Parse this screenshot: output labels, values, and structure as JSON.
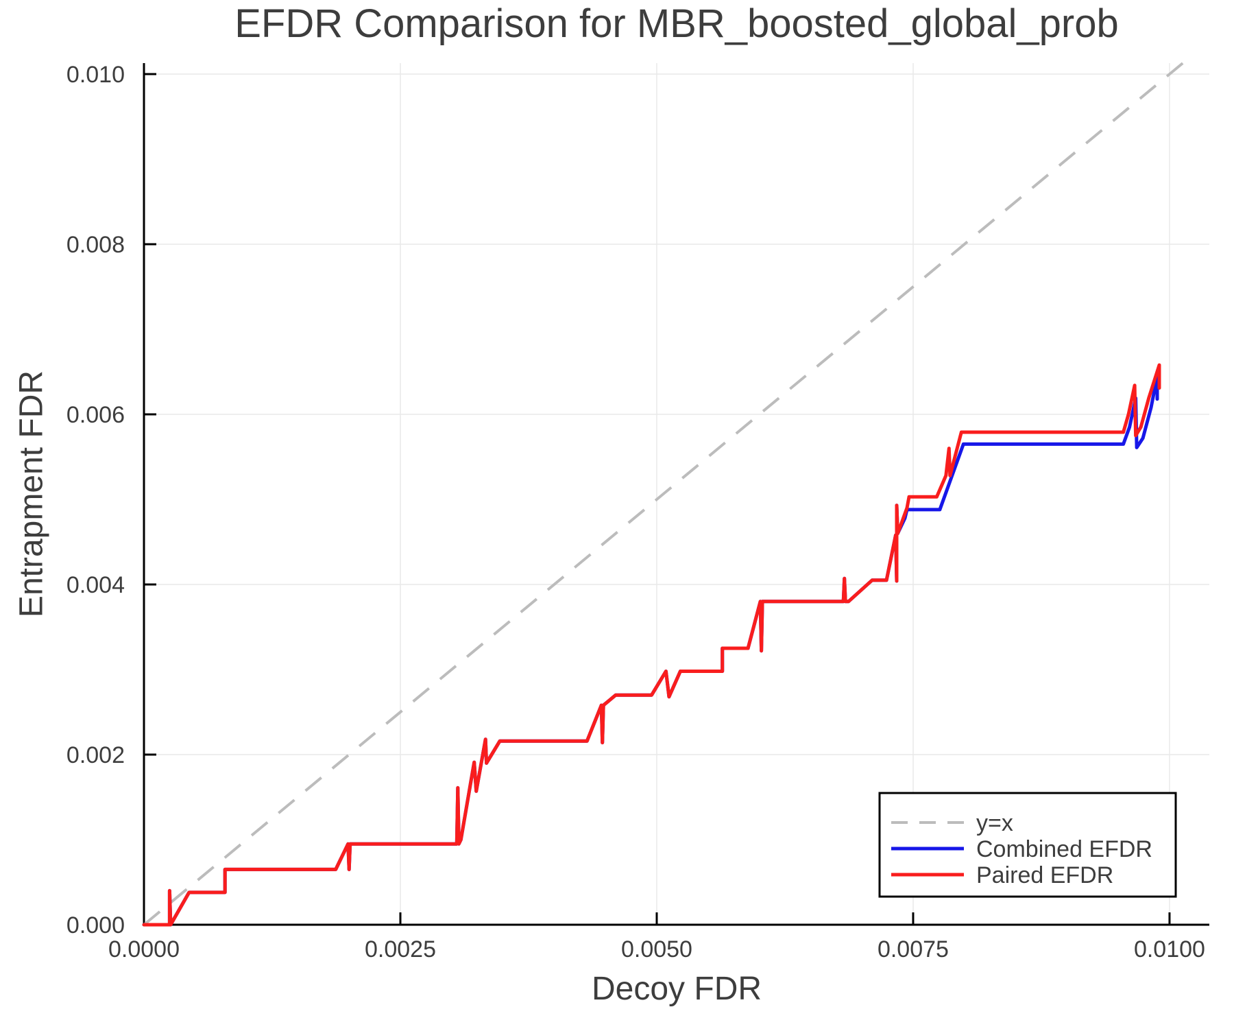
{
  "chart_data": {
    "type": "line",
    "title": "EFDR Comparison for MBR_boosted_global_prob",
    "xlabel": "Decoy FDR",
    "ylabel": "Entrapment FDR",
    "xlim": [
      0,
      0.010388
    ],
    "ylim": [
      0,
      0.010129
    ],
    "grid": true,
    "legend_position": "bottom-right",
    "x_ticks": {
      "values": [
        0,
        0.0025,
        0.005,
        0.0075,
        0.01
      ],
      "labels": [
        "0.0000",
        "0.0025",
        "0.0050",
        "0.0075",
        "0.0100"
      ]
    },
    "y_ticks": {
      "values": [
        0,
        0.002,
        0.004,
        0.006,
        0.008,
        0.01
      ],
      "labels": [
        "0.000",
        "0.002",
        "0.004",
        "0.006",
        "0.008",
        "0.010"
      ]
    },
    "colors": {
      "identity": "#bcbcbc",
      "combined": "#1717e8",
      "paired": "#f91d1d",
      "grid": "#e9e9e9",
      "axis": "#000000",
      "text": "#3d3d3d"
    },
    "series": [
      {
        "name": "y=x",
        "legend_label": "y=x",
        "color": "#bcbcbc",
        "style": "dashed",
        "points": [
          [
            0,
            0
          ],
          [
            0.010129,
            0.010129
          ]
        ]
      },
      {
        "name": "Combined EFDR",
        "legend_label": "Combined EFDR",
        "color": "#1717e8",
        "style": "solid",
        "points": [
          [
            0,
            0
          ],
          [
            0.00025,
            0
          ],
          [
            0.00025,
            0.0004
          ],
          [
            0.00026,
            0
          ],
          [
            0.00044,
            0.00038
          ],
          [
            0.00079,
            0.00038
          ],
          [
            0.00079,
            0.00065
          ],
          [
            0.00187,
            0.00065
          ],
          [
            0.00199,
            0.00095
          ],
          [
            0.002,
            0.00065
          ],
          [
            0.00201,
            0.00095
          ],
          [
            0.00305,
            0.00095
          ],
          [
            0.00306,
            0.00161
          ],
          [
            0.00307,
            0.00095
          ],
          [
            0.00309,
            0.001
          ],
          [
            0.00322,
            0.00191
          ],
          [
            0.00324,
            0.00157
          ],
          [
            0.00333,
            0.00218
          ],
          [
            0.00334,
            0.0019
          ],
          [
            0.00347,
            0.00216
          ],
          [
            0.00432,
            0.00216
          ],
          [
            0.00446,
            0.00258
          ],
          [
            0.00447,
            0.00214
          ],
          [
            0.00448,
            0.00258
          ],
          [
            0.0046,
            0.0027
          ],
          [
            0.00495,
            0.0027
          ],
          [
            0.00509,
            0.00298
          ],
          [
            0.00512,
            0.00268
          ],
          [
            0.00523,
            0.00298
          ],
          [
            0.00564,
            0.00298
          ],
          [
            0.00564,
            0.00325
          ],
          [
            0.00589,
            0.00325
          ],
          [
            0.00601,
            0.0038
          ],
          [
            0.00602,
            0.00322
          ],
          [
            0.00603,
            0.0038
          ],
          [
            0.00682,
            0.0038
          ],
          [
            0.00683,
            0.00407
          ],
          [
            0.00684,
            0.0038
          ],
          [
            0.00687,
            0.0038
          ],
          [
            0.0071,
            0.00405
          ],
          [
            0.00724,
            0.00405
          ],
          [
            0.00733,
            0.00458
          ],
          [
            0.00734,
            0.00404
          ],
          [
            0.00734,
            0.00493
          ],
          [
            0.00735,
            0.0046
          ],
          [
            0.00742,
            0.00478
          ],
          [
            0.00744,
            0.00488
          ],
          [
            0.00776,
            0.00488
          ],
          [
            0.00799,
            0.00565
          ],
          [
            0.00955,
            0.00565
          ],
          [
            0.00961,
            0.00585
          ],
          [
            0.00967,
            0.00619
          ],
          [
            0.00968,
            0.00561
          ],
          [
            0.00974,
            0.00572
          ],
          [
            0.00982,
            0.00608
          ],
          [
            0.00988,
            0.00645
          ],
          [
            0.00988,
            0.00618
          ]
        ]
      },
      {
        "name": "Paired EFDR",
        "legend_label": "Paired EFDR",
        "color": "#f91d1d",
        "style": "solid",
        "points": [
          [
            0,
            0
          ],
          [
            0.00025,
            0
          ],
          [
            0.00025,
            0.0004
          ],
          [
            0.00026,
            0
          ],
          [
            0.00044,
            0.00038
          ],
          [
            0.00079,
            0.00038
          ],
          [
            0.00079,
            0.00065
          ],
          [
            0.00187,
            0.00065
          ],
          [
            0.00199,
            0.00095
          ],
          [
            0.002,
            0.00065
          ],
          [
            0.00201,
            0.00095
          ],
          [
            0.00305,
            0.00095
          ],
          [
            0.00306,
            0.00161
          ],
          [
            0.00307,
            0.00095
          ],
          [
            0.00309,
            0.001
          ],
          [
            0.00322,
            0.00191
          ],
          [
            0.00324,
            0.00157
          ],
          [
            0.00333,
            0.00218
          ],
          [
            0.00334,
            0.0019
          ],
          [
            0.00347,
            0.00216
          ],
          [
            0.00432,
            0.00216
          ],
          [
            0.00446,
            0.00258
          ],
          [
            0.00447,
            0.00214
          ],
          [
            0.00448,
            0.00258
          ],
          [
            0.0046,
            0.0027
          ],
          [
            0.00495,
            0.0027
          ],
          [
            0.00509,
            0.00298
          ],
          [
            0.00512,
            0.00268
          ],
          [
            0.00523,
            0.00298
          ],
          [
            0.00564,
            0.00298
          ],
          [
            0.00564,
            0.00325
          ],
          [
            0.00589,
            0.00325
          ],
          [
            0.00601,
            0.0038
          ],
          [
            0.00602,
            0.00322
          ],
          [
            0.00603,
            0.0038
          ],
          [
            0.00682,
            0.0038
          ],
          [
            0.00683,
            0.00407
          ],
          [
            0.00684,
            0.0038
          ],
          [
            0.00687,
            0.0038
          ],
          [
            0.0071,
            0.00405
          ],
          [
            0.00724,
            0.00405
          ],
          [
            0.00733,
            0.00458
          ],
          [
            0.00734,
            0.00404
          ],
          [
            0.00734,
            0.00493
          ],
          [
            0.00735,
            0.0046
          ],
          [
            0.00744,
            0.0049
          ],
          [
            0.00746,
            0.00503
          ],
          [
            0.00773,
            0.00503
          ],
          [
            0.00782,
            0.00528
          ],
          [
            0.00785,
            0.0056
          ],
          [
            0.00786,
            0.00528
          ],
          [
            0.00797,
            0.00579
          ],
          [
            0.00955,
            0.00579
          ],
          [
            0.0096,
            0.006
          ],
          [
            0.00966,
            0.00634
          ],
          [
            0.00967,
            0.00575
          ],
          [
            0.00972,
            0.00585
          ],
          [
            0.0098,
            0.0062
          ],
          [
            0.0099,
            0.00658
          ],
          [
            0.0099,
            0.00631
          ]
        ]
      }
    ]
  }
}
